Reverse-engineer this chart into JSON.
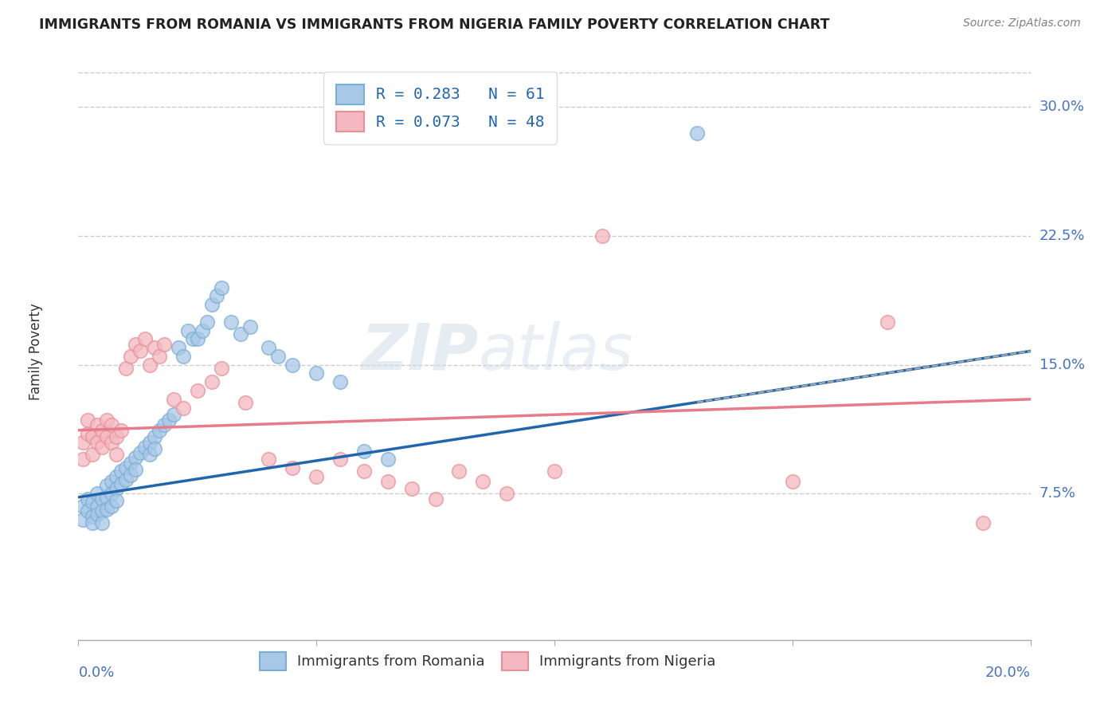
{
  "title": "IMMIGRANTS FROM ROMANIA VS IMMIGRANTS FROM NIGERIA FAMILY POVERTY CORRELATION CHART",
  "source": "Source: ZipAtlas.com",
  "ylabel": "Family Poverty",
  "ytick_labels": [
    "7.5%",
    "15.0%",
    "22.5%",
    "30.0%"
  ],
  "ytick_values": [
    0.075,
    0.15,
    0.225,
    0.3
  ],
  "xlim": [
    0.0,
    0.2
  ],
  "ylim": [
    -0.01,
    0.325
  ],
  "romania_color": "#a8c8e8",
  "romania_edge_color": "#7bafd4",
  "nigeria_color": "#f4b8c0",
  "nigeria_edge_color": "#e8909a",
  "romania_line_color": "#2166ac",
  "nigeria_line_color": "#e87b8a",
  "romania_R": 0.283,
  "romania_N": 61,
  "nigeria_R": 0.073,
  "nigeria_N": 48,
  "legend_label_romania": "Immigrants from Romania",
  "legend_label_nigeria": "Immigrants from Nigeria",
  "romania_scatter_x": [
    0.001,
    0.001,
    0.002,
    0.002,
    0.003,
    0.003,
    0.003,
    0.004,
    0.004,
    0.004,
    0.005,
    0.005,
    0.005,
    0.006,
    0.006,
    0.006,
    0.007,
    0.007,
    0.007,
    0.008,
    0.008,
    0.008,
    0.009,
    0.009,
    0.01,
    0.01,
    0.011,
    0.011,
    0.012,
    0.012,
    0.013,
    0.014,
    0.015,
    0.015,
    0.016,
    0.016,
    0.017,
    0.018,
    0.019,
    0.02,
    0.021,
    0.022,
    0.023,
    0.024,
    0.025,
    0.026,
    0.027,
    0.028,
    0.029,
    0.03,
    0.032,
    0.034,
    0.036,
    0.04,
    0.042,
    0.045,
    0.05,
    0.055,
    0.06,
    0.065,
    0.13
  ],
  "romania_scatter_y": [
    0.068,
    0.06,
    0.072,
    0.065,
    0.07,
    0.062,
    0.058,
    0.075,
    0.068,
    0.063,
    0.072,
    0.065,
    0.058,
    0.08,
    0.073,
    0.066,
    0.082,
    0.075,
    0.068,
    0.085,
    0.078,
    0.071,
    0.088,
    0.081,
    0.09,
    0.083,
    0.093,
    0.086,
    0.096,
    0.089,
    0.099,
    0.102,
    0.105,
    0.098,
    0.108,
    0.101,
    0.112,
    0.115,
    0.118,
    0.121,
    0.16,
    0.155,
    0.17,
    0.165,
    0.165,
    0.17,
    0.175,
    0.185,
    0.19,
    0.195,
    0.175,
    0.168,
    0.172,
    0.16,
    0.155,
    0.15,
    0.145,
    0.14,
    0.1,
    0.095,
    0.285
  ],
  "nigeria_scatter_x": [
    0.001,
    0.001,
    0.002,
    0.002,
    0.003,
    0.003,
    0.004,
    0.004,
    0.005,
    0.005,
    0.006,
    0.006,
    0.007,
    0.007,
    0.008,
    0.008,
    0.009,
    0.01,
    0.011,
    0.012,
    0.013,
    0.014,
    0.015,
    0.016,
    0.017,
    0.018,
    0.02,
    0.022,
    0.025,
    0.028,
    0.03,
    0.035,
    0.04,
    0.045,
    0.05,
    0.055,
    0.06,
    0.065,
    0.07,
    0.075,
    0.08,
    0.085,
    0.09,
    0.1,
    0.11,
    0.15,
    0.17,
    0.19
  ],
  "nigeria_scatter_y": [
    0.095,
    0.105,
    0.11,
    0.118,
    0.108,
    0.098,
    0.115,
    0.105,
    0.112,
    0.102,
    0.108,
    0.118,
    0.105,
    0.115,
    0.108,
    0.098,
    0.112,
    0.148,
    0.155,
    0.162,
    0.158,
    0.165,
    0.15,
    0.16,
    0.155,
    0.162,
    0.13,
    0.125,
    0.135,
    0.14,
    0.148,
    0.128,
    0.095,
    0.09,
    0.085,
    0.095,
    0.088,
    0.082,
    0.078,
    0.072,
    0.088,
    0.082,
    0.075,
    0.088,
    0.225,
    0.082,
    0.175,
    0.058
  ],
  "watermark_zip": "ZIP",
  "watermark_atlas": "atlas",
  "background_color": "#ffffff",
  "grid_color": "#cccccc",
  "axis_label_color": "#4472c4",
  "text_color_dark": "#333333",
  "title_color": "#222222",
  "legend_text_color": "#2166ac"
}
